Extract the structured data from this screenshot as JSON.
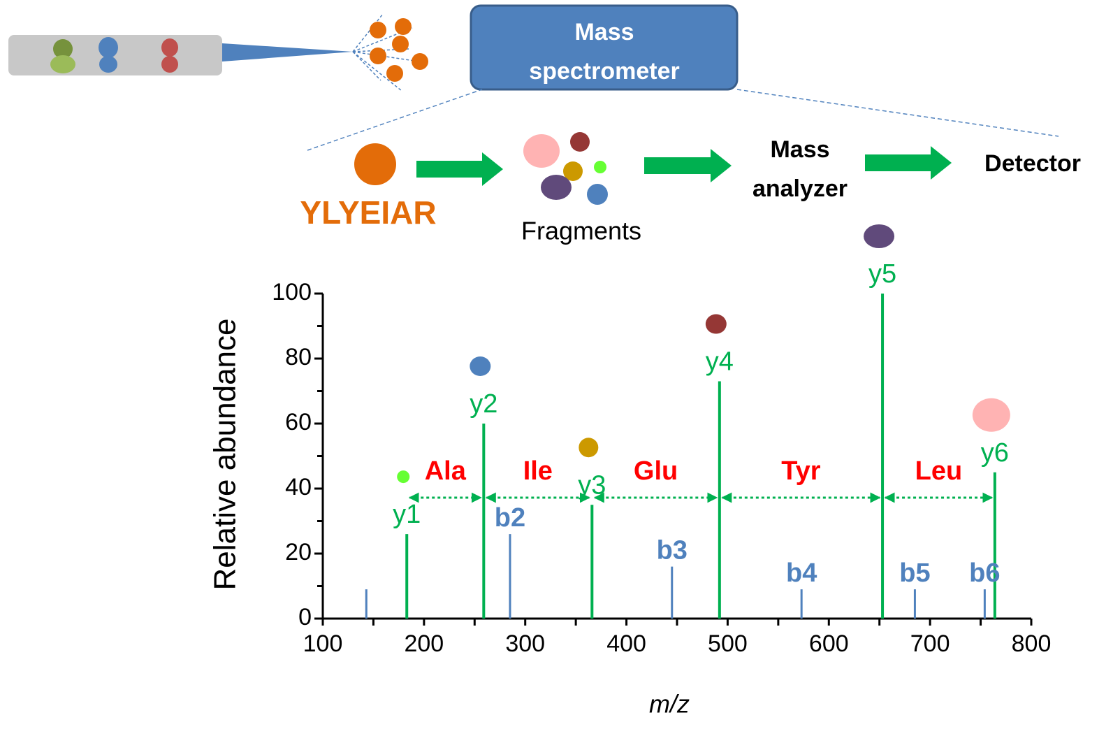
{
  "diagram": {
    "instrument": "Mass spectrometer",
    "peptide": "YLYEIAR",
    "fragments": "Fragments",
    "analyzer": "Mass analyzer",
    "detector": "Detector"
  },
  "chart_data": {
    "type": "stick",
    "x_label": "m/z",
    "y_label": "Relative abundance",
    "xlim": [
      100,
      800
    ],
    "xticks": [
      100,
      200,
      300,
      400,
      500,
      600,
      700,
      800
    ],
    "ylim": [
      0,
      100
    ],
    "yticks": [
      0,
      20,
      40,
      60,
      80,
      100
    ],
    "series": [
      {
        "color": "#00b050",
        "labels": [
          "y1",
          "y2",
          "y3",
          "y4",
          "y5",
          "y6"
        ],
        "x": [
          183,
          259,
          366,
          492,
          653,
          764
        ],
        "values": [
          26,
          60,
          35,
          73,
          100,
          45
        ],
        "marker_colors": [
          "#66ff33",
          "#4f81bd",
          "#cc9900",
          "#953735",
          "#604a7b",
          "#ffb3b3"
        ]
      },
      {
        "color": "#4f81bd",
        "labels": [
          null,
          "b2",
          "b3",
          "b4",
          "b5",
          "b6"
        ],
        "x": [
          143,
          285,
          445,
          573,
          685,
          754
        ],
        "values": [
          9,
          26,
          16,
          9,
          9,
          9
        ]
      }
    ],
    "annotations": [
      "Ala",
      "Ile",
      "Glu",
      "Tyr",
      "Leu"
    ],
    "annotation_color": "#ff0000"
  }
}
